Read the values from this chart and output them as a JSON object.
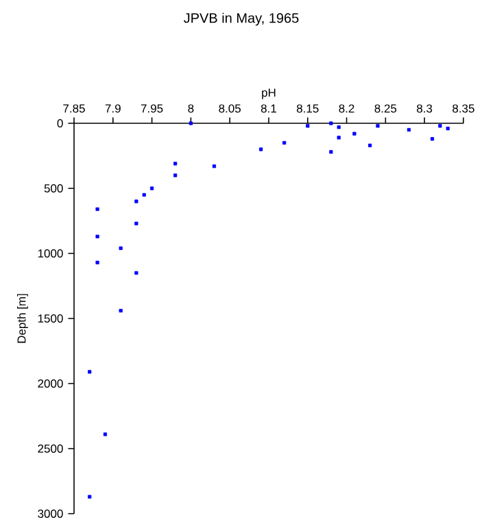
{
  "chart_data": {
    "type": "scatter",
    "title": "JPVB in May, 1965",
    "xlabel": "pH",
    "ylabel": "Depth [m]",
    "xlim": [
      7.85,
      8.35
    ],
    "xticks": [
      7.85,
      7.9,
      7.95,
      8,
      8.05,
      8.1,
      8.15,
      8.2,
      8.25,
      8.3,
      8.35
    ],
    "ylim": [
      3000,
      0
    ],
    "yticks": [
      0,
      500,
      1000,
      1500,
      2000,
      2500,
      3000
    ],
    "marker": "square",
    "series": [
      {
        "color": "#0000ff",
        "x": [
          8.0,
          7.88,
          7.88,
          7.91,
          7.93,
          7.93,
          7.94,
          7.95,
          7.98,
          7.98,
          8.03,
          8.09,
          8.12,
          8.15,
          8.18,
          8.18,
          8.19,
          8.19,
          8.21,
          8.23,
          8.24,
          8.28,
          8.31,
          8.32,
          8.33,
          7.88,
          7.93,
          7.91,
          7.87,
          7.89,
          7.87
        ],
        "values": [
          0,
          660,
          870,
          960,
          600,
          770,
          550,
          500,
          310,
          400,
          330,
          200,
          150,
          20,
          0,
          220,
          30,
          110,
          80,
          170,
          20,
          50,
          120,
          20,
          40,
          1070,
          1150,
          1440,
          1910,
          2390,
          2870
        ]
      }
    ]
  }
}
